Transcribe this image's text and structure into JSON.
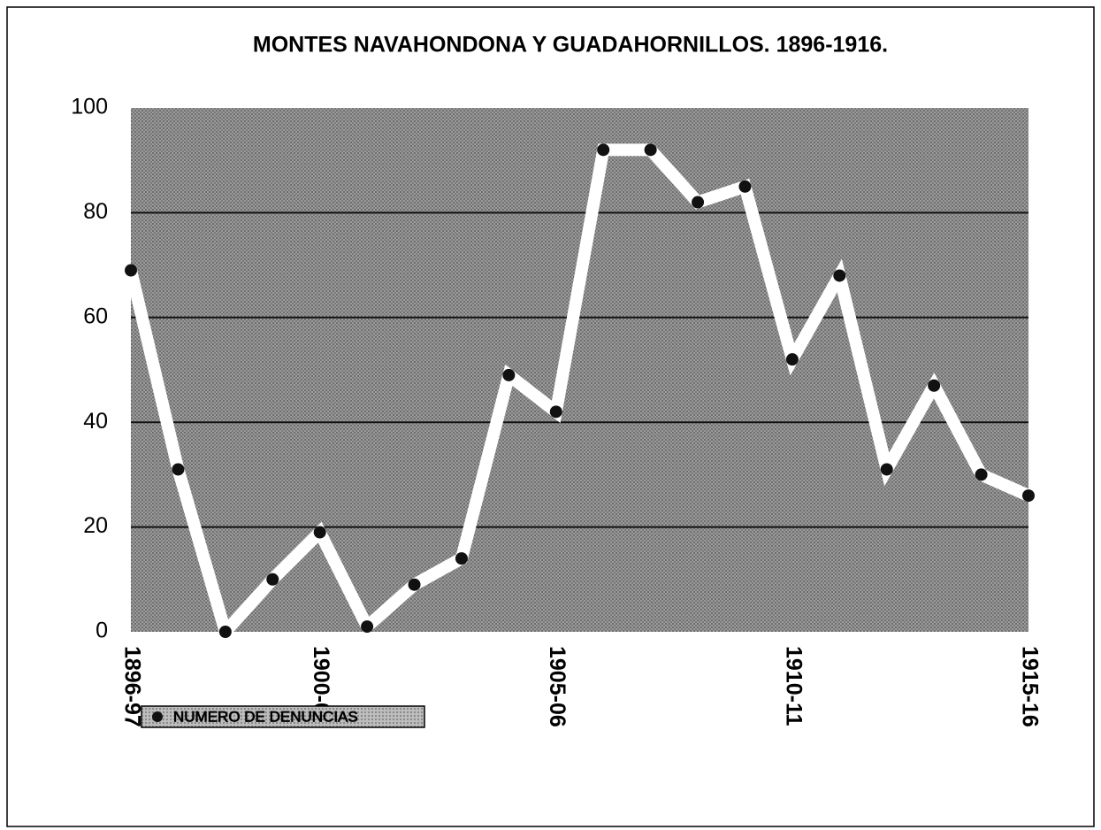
{
  "chart_data": {
    "type": "line",
    "title": "MONTES NAVAHONDONA Y GUADAHORNILLOS. 1896-1916.",
    "categories": [
      "1896-97",
      null,
      null,
      null,
      "1900-01",
      null,
      null,
      null,
      null,
      "1905-06",
      null,
      null,
      null,
      null,
      "1910-11",
      null,
      null,
      null,
      null,
      "1915-16"
    ],
    "series": [
      {
        "name": "NUMERO DE DENUNCIAS",
        "color": "#ffffff",
        "marker_color": "#111111",
        "values": [
          69,
          31,
          0,
          10,
          19,
          1,
          9,
          14,
          49,
          42,
          92,
          92,
          82,
          85,
          52,
          68,
          31,
          47,
          30,
          26
        ]
      }
    ],
    "ylim": [
      0,
      100
    ],
    "yticks": [
      0,
      20,
      40,
      60,
      80,
      100
    ],
    "grid": true,
    "legend": "bottom-left"
  }
}
